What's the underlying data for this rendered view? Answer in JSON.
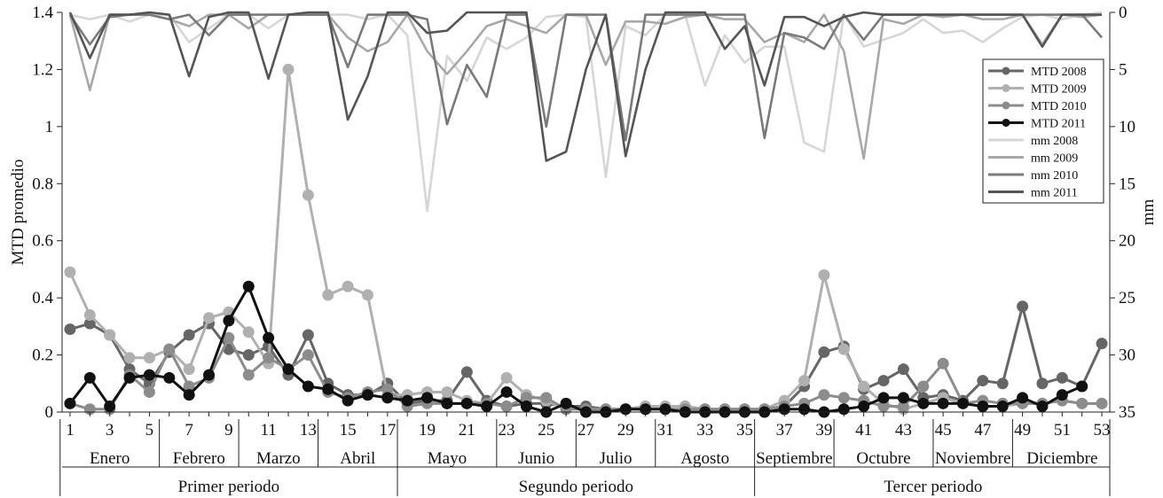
{
  "chart_data": {
    "type": "line",
    "title": "",
    "xlabel": "",
    "ylabel": "MTD promedio",
    "y2label": "mm",
    "x": [
      1,
      2,
      3,
      4,
      5,
      6,
      7,
      8,
      9,
      10,
      11,
      12,
      13,
      14,
      15,
      16,
      17,
      18,
      19,
      20,
      21,
      22,
      23,
      24,
      25,
      26,
      27,
      28,
      29,
      30,
      31,
      32,
      33,
      34,
      35,
      36,
      37,
      38,
      39,
      40,
      41,
      42,
      43,
      44,
      45,
      46,
      47,
      48,
      49,
      50,
      51,
      52,
      53
    ],
    "xlim": [
      0.6,
      53.4
    ],
    "ylim": [
      0,
      1.4
    ],
    "y2lim": [
      0,
      35
    ],
    "y2_inverted": true,
    "xticks": [
      "1",
      "3",
      "5",
      "7",
      "9",
      "11",
      "13",
      "15",
      "17",
      "19",
      "21",
      "23",
      "25",
      "27",
      "29",
      "31",
      "33",
      "35",
      "37",
      "39",
      "41",
      "43",
      "45",
      "47",
      "49",
      "51",
      "53"
    ],
    "yticks": [
      "0",
      "0.2",
      "0.4",
      "0.6",
      "0.8",
      "1",
      "1.2",
      "1.4"
    ],
    "y2ticks": [
      "0",
      "5",
      "10",
      "15",
      "20",
      "25",
      "30",
      "35"
    ],
    "months": [
      {
        "label": "Enero",
        "start": 0.5,
        "end": 5.5
      },
      {
        "label": "Febrero",
        "start": 5.5,
        "end": 9.5
      },
      {
        "label": "Marzo",
        "start": 9.5,
        "end": 13.5
      },
      {
        "label": "Abril",
        "start": 13.5,
        "end": 17.5
      },
      {
        "label": "Mayo",
        "start": 17.5,
        "end": 22.5
      },
      {
        "label": "Junio",
        "start": 22.5,
        "end": 26.5
      },
      {
        "label": "Julio",
        "start": 26.5,
        "end": 30.5
      },
      {
        "label": "Agosto",
        "start": 30.5,
        "end": 35.5
      },
      {
        "label": "Septiembre",
        "start": 35.5,
        "end": 39.5
      },
      {
        "label": "Octubre",
        "start": 39.5,
        "end": 44.5
      },
      {
        "label": "Noviembre",
        "start": 44.5,
        "end": 48.5
      },
      {
        "label": "Diciembre",
        "start": 48.5,
        "end": 53.5
      }
    ],
    "periods": [
      {
        "label": "Primer periodo",
        "start": 0.5,
        "end": 17.5
      },
      {
        "label": "Segundo periodo",
        "start": 17.5,
        "end": 35.5
      },
      {
        "label": "Tercer periodo",
        "start": 35.5,
        "end": 53.5
      }
    ],
    "legend_position": "top-right",
    "series": [
      {
        "name": "MTD 2008",
        "axis": "left",
        "kind": "mtd",
        "color": "#666666",
        "values": [
          0.29,
          0.31,
          0.27,
          0.15,
          0.1,
          0.21,
          0.27,
          0.31,
          0.22,
          0.2,
          0.23,
          0.13,
          0.27,
          0.1,
          0.06,
          0.06,
          0.1,
          0.03,
          0.04,
          0.04,
          0.14,
          0.04,
          0.02,
          0.03,
          0.03,
          0.02,
          0.02,
          0.01,
          0.01,
          0.02,
          0.02,
          0.02,
          0.01,
          0.01,
          0.01,
          0.01,
          0.02,
          0.09,
          0.21,
          0.23,
          0.08,
          0.11,
          0.15,
          0.05,
          0.06,
          0.04,
          0.11,
          0.1,
          0.37,
          0.1,
          0.12,
          0.09,
          0.24
        ]
      },
      {
        "name": "MTD 2009",
        "axis": "left",
        "kind": "mtd",
        "color": "#b0b0b0",
        "values": [
          0.49,
          0.34,
          0.27,
          0.19,
          0.19,
          0.22,
          0.15,
          0.33,
          0.35,
          0.28,
          0.17,
          1.2,
          0.76,
          0.41,
          0.44,
          0.41,
          0.06,
          0.06,
          0.07,
          0.07,
          0.04,
          0.03,
          0.12,
          0.06,
          0.04,
          0.01,
          0.01,
          0.01,
          0.01,
          0.02,
          0.02,
          0.02,
          0.01,
          0.01,
          0.01,
          0.01,
          0.04,
          0.11,
          0.48,
          0.22,
          0.09,
          0.03,
          0.01,
          0.03,
          0.05,
          0.03,
          0.02,
          0.02,
          0.03,
          0.03,
          0.04,
          0.03,
          0.03
        ]
      },
      {
        "name": "MTD 2010",
        "axis": "left",
        "kind": "mtd",
        "color": "#8c8c8c",
        "values": [
          0.03,
          0.01,
          0.01,
          0.13,
          0.07,
          0.22,
          0.09,
          0.12,
          0.26,
          0.13,
          0.19,
          0.15,
          0.2,
          0.07,
          0.05,
          0.07,
          0.08,
          0.02,
          0.03,
          0.03,
          0.03,
          0.03,
          0.02,
          0.05,
          0.05,
          0.01,
          0.01,
          0.01,
          0.01,
          0.01,
          0.01,
          0.01,
          0.01,
          0.01,
          0.01,
          0.01,
          0.02,
          0.03,
          0.06,
          0.05,
          0.04,
          0.02,
          0.02,
          0.09,
          0.17,
          0.03,
          0.04,
          0.03,
          0.03,
          0.03,
          0.04,
          0.03,
          0.03
        ]
      },
      {
        "name": "MTD 2011",
        "axis": "left",
        "kind": "mtd",
        "color": "#111111",
        "values": [
          0.03,
          0.12,
          0.02,
          0.12,
          0.13,
          0.12,
          0.06,
          0.13,
          0.32,
          0.44,
          0.26,
          0.15,
          0.09,
          0.08,
          0.04,
          0.06,
          0.05,
          0.04,
          0.05,
          0.03,
          0.03,
          0.02,
          0.07,
          0.02,
          0.0,
          0.03,
          0.0,
          0.0,
          0.01,
          0.01,
          0.01,
          0.0,
          0.0,
          0.0,
          0.0,
          0.0,
          0.01,
          0.01,
          0.0,
          0.01,
          0.02,
          0.05,
          0.05,
          0.03,
          0.03,
          0.03,
          0.02,
          0.02,
          0.05,
          0.02,
          0.06,
          0.09,
          null
        ]
      },
      {
        "name": "mm 2008",
        "axis": "right",
        "kind": "mm",
        "color": "#d6d6d6",
        "values": [
          0.2,
          0.6,
          0.2,
          0.8,
          0.2,
          0.2,
          2.6,
          1.4,
          0.2,
          0.2,
          1.4,
          0.2,
          0.2,
          0.2,
          0.2,
          0.6,
          0.2,
          2.0,
          17.4,
          3.8,
          6.0,
          2.2,
          3.2,
          2.2,
          0.4,
          0.2,
          0.4,
          14.4,
          1.2,
          2.0,
          0.2,
          0.2,
          6.4,
          2.0,
          4.4,
          3.0,
          3.0,
          11.4,
          12.2,
          0.2,
          3.0,
          2.4,
          1.8,
          0.6,
          1.8,
          1.6,
          2.6,
          1.4,
          0.4,
          0.2,
          0.6,
          0.2,
          0.0
        ]
      },
      {
        "name": "mm 2009",
        "axis": "right",
        "kind": "mm",
        "color": "#a8a8a8",
        "values": [
          0.2,
          6.8,
          0.2,
          0.2,
          0.2,
          0.6,
          1.2,
          0.2,
          0.2,
          1.4,
          0.2,
          0.2,
          0.2,
          0.2,
          2.2,
          3.4,
          2.6,
          0.2,
          3.4,
          5.4,
          3.4,
          1.2,
          0.6,
          1.2,
          1.8,
          0.2,
          0.2,
          4.6,
          0.8,
          0.8,
          1.0,
          0.4,
          0.2,
          0.6,
          0.6,
          2.6,
          1.8,
          2.6,
          0.2,
          3.4,
          12.8,
          0.6,
          1.0,
          0.2,
          0.4,
          0.2,
          0.6,
          0.6,
          0.2,
          2.8,
          0.2,
          0.4,
          0.2
        ]
      },
      {
        "name": "mm 2010",
        "axis": "right",
        "kind": "mm",
        "color": "#7a7a7a",
        "values": [
          0.2,
          2.8,
          0.4,
          0.2,
          0.2,
          0.6,
          0.2,
          2.0,
          0.2,
          0.2,
          0.2,
          0.2,
          0.2,
          0.2,
          4.8,
          0.2,
          0.2,
          0.2,
          0.6,
          9.8,
          4.6,
          7.4,
          0.2,
          0.2,
          10.0,
          0.2,
          0.2,
          0.2,
          11.2,
          0.2,
          0.2,
          0.2,
          0.2,
          0.2,
          0.2,
          11.0,
          1.8,
          2.2,
          3.2,
          0.2,
          2.4,
          0.2,
          0.2,
          0.2,
          0.2,
          0.2,
          0.2,
          0.2,
          0.2,
          0.2,
          0.2,
          0.2,
          2.2
        ]
      },
      {
        "name": "mm 2011",
        "axis": "right",
        "kind": "mm",
        "color": "#555555",
        "values": [
          0.0,
          4.0,
          0.2,
          0.2,
          0.0,
          0.2,
          5.6,
          0.4,
          0.0,
          0.0,
          5.8,
          0.2,
          0.0,
          0.0,
          9.4,
          5.6,
          0.0,
          0.0,
          1.8,
          1.6,
          0.0,
          0.0,
          0.0,
          0.0,
          13.0,
          12.2,
          5.0,
          0.2,
          12.6,
          5.0,
          0.0,
          0.0,
          0.0,
          3.2,
          1.2,
          6.4,
          0.4,
          0.4,
          1.2,
          0.4,
          0.0,
          0.2,
          0.2,
          0.2,
          0.2,
          0.2,
          0.2,
          0.2,
          0.2,
          3.0,
          0.2,
          0.2,
          0.2
        ]
      }
    ]
  }
}
